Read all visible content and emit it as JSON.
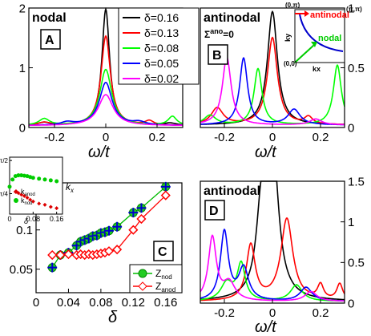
{
  "chart_data": [
    {
      "type": "line",
      "panel": "A",
      "title": "nodal",
      "xlabel": "ω/t",
      "xlim": [
        -0.3,
        0.3
      ],
      "ylim": [
        0,
        2
      ],
      "x_ticks": [
        "-0.2",
        "0",
        "0.2"
      ],
      "y_ticks": [
        "0",
        "1",
        "2"
      ],
      "legend_position": "top-right",
      "series": [
        {
          "name": "δ=0.16",
          "color": "#000000",
          "peak_y": 1.95,
          "width": 0.018,
          "bumps": [
            [
              -0.24,
              0.05,
              0.03
            ],
            [
              0.25,
              0.04,
              0.03
            ]
          ]
        },
        {
          "name": "δ=0.13",
          "color": "#ff0000",
          "peak_y": 1.5,
          "width": 0.022,
          "bumps": [
            [
              -0.24,
              0.05,
              0.03
            ],
            [
              0.17,
              0.07,
              0.02
            ]
          ]
        },
        {
          "name": "δ=0.08",
          "color": "#00ff00",
          "peak_y": 0.94,
          "width": 0.028,
          "bumps": [
            [
              -0.24,
              0.11,
              0.025
            ],
            [
              0.26,
              0.15,
              0.02
            ]
          ]
        },
        {
          "name": "δ=0.05",
          "color": "#0000ff",
          "peak_y": 0.72,
          "width": 0.03,
          "bumps": [
            [
              -0.15,
              0.05,
              0.03
            ],
            [
              0.13,
              0.05,
              0.03
            ]
          ]
        },
        {
          "name": "δ=0.02",
          "color": "#ff00ff",
          "peak_y": 0.52,
          "width": 0.035,
          "bumps": []
        }
      ]
    },
    {
      "type": "line",
      "panel": "B",
      "title": "antinodal",
      "subtitle": "Σano=0",
      "xlabel": "ω/t",
      "xlim": [
        -0.3,
        0.3
      ],
      "ylim": [
        0,
        1
      ],
      "x_ticks": [
        "-0.2",
        "0",
        "0.2"
      ],
      "y_ticks": [
        "0",
        "0.5",
        "1"
      ],
      "series": [
        {
          "name": "δ=0.16",
          "color": "#000000",
          "peaks": [
            [
              0.0,
              0.95,
              0.025
            ]
          ]
        },
        {
          "name": "δ=0.13",
          "color": "#ff0000",
          "peaks": [
            [
              0.0,
              0.73,
              0.025
            ],
            [
              -0.23,
              0.14,
              0.03
            ],
            [
              0.15,
              0.06,
              0.02
            ]
          ]
        },
        {
          "name": "δ=0.08",
          "color": "#00ff00",
          "peaks": [
            [
              -0.06,
              0.47,
              0.02
            ],
            [
              0.27,
              0.5,
              0.02
            ],
            [
              -0.26,
              0.08,
              0.03
            ]
          ]
        },
        {
          "name": "δ=0.05",
          "color": "#0000ff",
          "peaks": [
            [
              -0.12,
              0.56,
              0.02
            ],
            [
              0.09,
              0.13,
              0.03
            ]
          ]
        },
        {
          "name": "δ=0.02",
          "color": "#ff00ff",
          "peaks": [
            [
              -0.19,
              0.57,
              0.022
            ],
            [
              0.18,
              0.05,
              0.03
            ]
          ]
        }
      ],
      "inset": {
        "corner_labels": [
          "(0,π)",
          "(π,π)",
          "(0,0)"
        ],
        "xlabel": "kx",
        "ylabel": "ky",
        "annotations": [
          {
            "text": "antinodal",
            "color": "#ff0000"
          },
          {
            "text": "nodal",
            "color": "#00ff00"
          }
        ]
      }
    },
    {
      "type": "scatter",
      "panel": "C",
      "xlabel": "δ",
      "xlim": [
        0,
        0.18
      ],
      "ylim": [
        0.02,
        0.16
      ],
      "x_ticks": [
        "0",
        "0.04",
        "0.08",
        "0.12",
        "0.16"
      ],
      "y_ticks": [
        "0.05",
        "0.1",
        "0.15"
      ],
      "legend_position": "bottom-right",
      "series": [
        {
          "name": "Znod",
          "legend_main": "Z",
          "legend_sub": "nod",
          "color": "#00bb00",
          "marker": "circle-plus",
          "x": [
            0.02,
            0.03,
            0.04,
            0.05,
            0.055,
            0.06,
            0.065,
            0.07,
            0.075,
            0.08,
            0.085,
            0.09,
            0.1,
            0.12,
            0.13,
            0.16
          ],
          "y": [
            0.052,
            0.068,
            0.071,
            0.08,
            0.085,
            0.087,
            0.089,
            0.092,
            0.093,
            0.096,
            0.097,
            0.099,
            0.104,
            0.122,
            0.128,
            0.155
          ]
        },
        {
          "name": "Zanod",
          "legend_main": "Z",
          "legend_sub": "anod",
          "color": "#ff0000",
          "marker": "diamond",
          "x": [
            0.02,
            0.03,
            0.04,
            0.05,
            0.055,
            0.06,
            0.065,
            0.07,
            0.075,
            0.08,
            0.085,
            0.09,
            0.1,
            0.12,
            0.13,
            0.16
          ],
          "y": [
            0.068,
            0.068,
            0.069,
            0.068,
            0.069,
            0.068,
            0.069,
            0.068,
            0.069,
            0.07,
            0.071,
            0.073,
            0.075,
            0.1,
            0.114,
            0.144
          ]
        }
      ],
      "inset": {
        "type": "scatter",
        "x_ticks": [
          "0",
          "0.08",
          "0.16"
        ],
        "y_ticks": [
          "π/4",
          "π/2"
        ],
        "xlabel": "δ",
        "ylabel": "kx",
        "series": [
          {
            "name": "kanod",
            "legend_main": "k",
            "legend_sub": "anod",
            "color": "#dd0000",
            "x": [
              0.02,
              0.03,
              0.04,
              0.05,
              0.06,
              0.07,
              0.08,
              0.1,
              0.12,
              0.14,
              0.16
            ],
            "y": [
              0.83,
              0.8,
              0.76,
              0.73,
              0.69,
              0.64,
              0.6,
              0.55,
              0.52,
              0.47,
              0.44
            ]
          },
          {
            "name": "knod",
            "legend_main": "k",
            "legend_sub": "nod",
            "color": "#00cc00",
            "x": [
              0.0,
              0.01,
              0.02,
              0.03,
              0.04,
              0.05,
              0.06,
              0.07,
              0.08,
              0.1,
              0.12,
              0.14,
              0.16
            ],
            "y": [
              0.95,
              1.12,
              1.2,
              1.22,
              1.22,
              1.21,
              1.2,
              1.18,
              1.16,
              1.14,
              1.12,
              1.1,
              1.08
            ]
          }
        ]
      }
    },
    {
      "type": "line",
      "panel": "D",
      "title": "antinodal",
      "xlabel": "ω/t",
      "xlim": [
        -0.3,
        0.3
      ],
      "ylim": [
        0,
        1.5
      ],
      "x_ticks": [
        "-0.2",
        "0",
        "0.2"
      ],
      "y_ticks": [
        "0",
        "0.5",
        "1",
        "1.5"
      ],
      "series": [
        {
          "name": "δ=0.16",
          "color": "#000000",
          "peaks": [
            [
              -0.045,
              1.03,
              0.025
            ],
            [
              0.005,
              1.18,
              0.025
            ],
            [
              -0.005,
              0.55,
              0.04
            ]
          ]
        },
        {
          "name": "δ=0.13",
          "color": "#ff0000",
          "peaks": [
            [
              -0.09,
              0.68,
              0.022
            ],
            [
              0.06,
              1.01,
              0.03
            ],
            [
              0.2,
              0.18,
              0.015
            ],
            [
              0.28,
              0.2,
              0.015
            ]
          ]
        },
        {
          "name": "δ=0.08",
          "color": "#00ff00",
          "peaks": [
            [
              -0.13,
              0.45,
              0.02
            ],
            [
              -0.19,
              0.22,
              0.03
            ],
            [
              0.1,
              0.2,
              0.03
            ]
          ]
        },
        {
          "name": "δ=0.05",
          "color": "#0000ff",
          "peaks": [
            [
              -0.2,
              0.85,
              0.02
            ],
            [
              -0.12,
              0.4,
              0.025
            ],
            [
              0.14,
              0.17,
              0.03
            ]
          ]
        },
        {
          "name": "δ=0.02",
          "color": "#ff00ff",
          "peaks": [
            [
              -0.25,
              0.78,
              0.02
            ],
            [
              -0.18,
              0.22,
              0.03
            ],
            [
              0.16,
              0.12,
              0.03
            ]
          ]
        }
      ]
    }
  ],
  "panel_letters": {
    "A": "A",
    "B": "B",
    "C": "C",
    "D": "D"
  },
  "legend_title_prefix": "δ"
}
